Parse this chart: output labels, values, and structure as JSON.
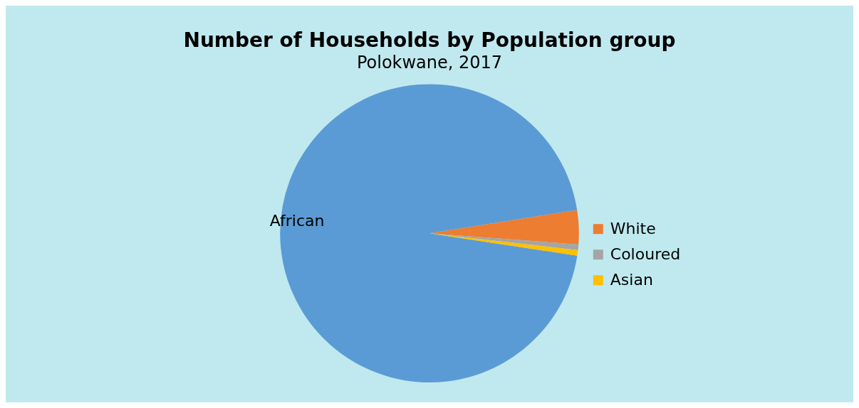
{
  "chart_data": {
    "type": "pie",
    "title": "Number of Households by Population group",
    "subtitle": "Polokwane, 2017",
    "categories": [
      "African",
      "White",
      "Coloured",
      "Asian"
    ],
    "values": [
      95.1,
      3.7,
      0.6,
      0.6
    ],
    "colors": [
      "#5b9bd5",
      "#ed7d31",
      "#a5a5a5",
      "#ffc000"
    ],
    "legend": "right"
  }
}
